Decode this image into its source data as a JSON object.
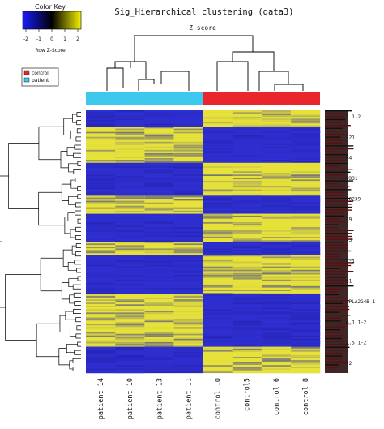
{
  "chart_data": {
    "type": "heatmap",
    "title": "Sig_Hierarchical clustering (data3)",
    "subtitle": "Z-score",
    "color_key": {
      "title": "Color Key",
      "ticks": [
        "-2",
        "-1",
        "0",
        "1",
        "2"
      ],
      "label": "Row Z-Score",
      "low_color": "#1a1aff",
      "mid_color": "#000000",
      "high_color": "#f2f200"
    },
    "legend": {
      "placement": "top-left",
      "items": [
        {
          "label": "control",
          "color": "#e8262b"
        },
        {
          "label": "patient",
          "color": "#3ec8ee"
        }
      ]
    },
    "columns": [
      {
        "label": "patient 14",
        "group": "patient"
      },
      {
        "label": "patient 10",
        "group": "patient"
      },
      {
        "label": "patient 13",
        "group": "patient"
      },
      {
        "label": "patient 11",
        "group": "patient"
      },
      {
        "label": "control 10",
        "group": "control"
      },
      {
        "label": "control5",
        "group": "control"
      },
      {
        "label": "control 6",
        "group": "control"
      },
      {
        "label": "control 8",
        "group": "control"
      }
    ],
    "visible_row_labels": [
      "2.1-2",
      "221",
      "84",
      "9331",
      "10239",
      "39",
      "-3",
      "2-1",
      "a1",
      "-PLA2G4B-1",
      "6.1.1-2",
      "2.5.1-2",
      "-2"
    ]
  },
  "colors": {
    "blue": "#2f2fd0",
    "yellow": "#e6e23a",
    "control": "#e8262b",
    "patient": "#3ec8ee"
  }
}
